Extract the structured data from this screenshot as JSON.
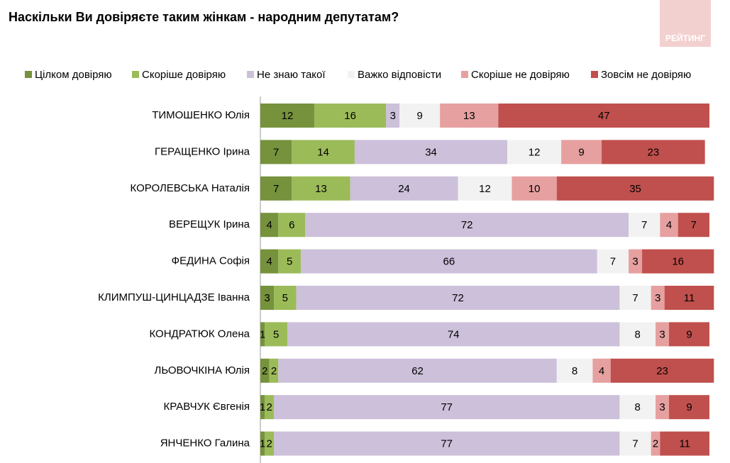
{
  "chart_data": {
    "type": "stacked-bar-horizontal",
    "title": "Наскільки Ви довіряєте таким жінкам - народним депутатам?",
    "logo": "РЕЙТИНГ",
    "legend": "top",
    "xlim": [
      0,
      100
    ],
    "categories": [
      "ТИМОШЕНКО Юлія",
      "ГЕРАЩЕНКО Ірина",
      "КОРОЛЕВСЬКА Наталія",
      "ВЕРЕЩУК Ірина",
      "ФЕДИНА Софія",
      "КЛИМПУШ-ЦИНЦАДЗЕ Іванна",
      "КОНДРАТЮК Олена",
      "ЛЬОВОЧКІНА Юлія",
      "КРАВЧУК Євгенія",
      "ЯНЧЕНКО Галина"
    ],
    "series": [
      {
        "name": "Цілком довіряю",
        "color": "#76923c",
        "values": [
          12,
          7,
          7,
          4,
          4,
          3,
          1,
          2,
          1,
          1
        ]
      },
      {
        "name": "Скоріше довіряю",
        "color": "#9bbb59",
        "values": [
          16,
          14,
          13,
          6,
          5,
          5,
          5,
          2,
          2,
          2
        ]
      },
      {
        "name": "Не знаю такої",
        "color": "#ccc0da",
        "values": [
          3,
          34,
          24,
          72,
          66,
          72,
          74,
          62,
          77,
          77
        ]
      },
      {
        "name": "Важко відповісти",
        "color": "#f2f2f2",
        "values": [
          9,
          12,
          12,
          7,
          7,
          7,
          8,
          8,
          8,
          7
        ]
      },
      {
        "name": "Скоріше не довіряю",
        "color": "#e6a0a0",
        "values": [
          13,
          9,
          10,
          4,
          3,
          3,
          3,
          4,
          3,
          2
        ]
      },
      {
        "name": "Зовсім не довіряю",
        "color": "#c0504d",
        "values": [
          47,
          23,
          35,
          7,
          16,
          11,
          9,
          23,
          9,
          11
        ]
      }
    ]
  }
}
